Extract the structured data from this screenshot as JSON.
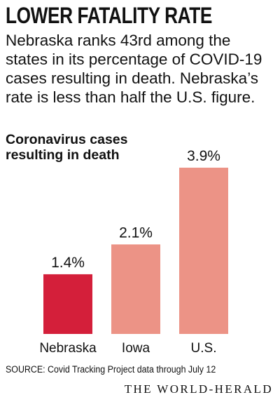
{
  "headline": "LOWER FATALITY RATE",
  "intro": "Nebraska ranks 43rd among the states in its percentage of COVID-19 cases resulting in death. Nebraska’s rate is less than half the U.S. figure.",
  "source": "SOURCE: Covid Tracking Project data through July 12",
  "credit": "THE WORLD-HERALD",
  "colors": {
    "highlight": "#d41f3a",
    "other": "#ec9386"
  },
  "chart_data": {
    "type": "bar",
    "title": "Coronavirus cases resulting in death",
    "categories": [
      "Nebraska",
      "Iowa",
      "U.S."
    ],
    "values": [
      1.4,
      2.1,
      3.9
    ],
    "value_labels": [
      "1.4%",
      "2.1%",
      "3.9%"
    ],
    "highlight_index": 0,
    "ylim": [
      0,
      3.9
    ],
    "grid": false,
    "legend": "none"
  }
}
